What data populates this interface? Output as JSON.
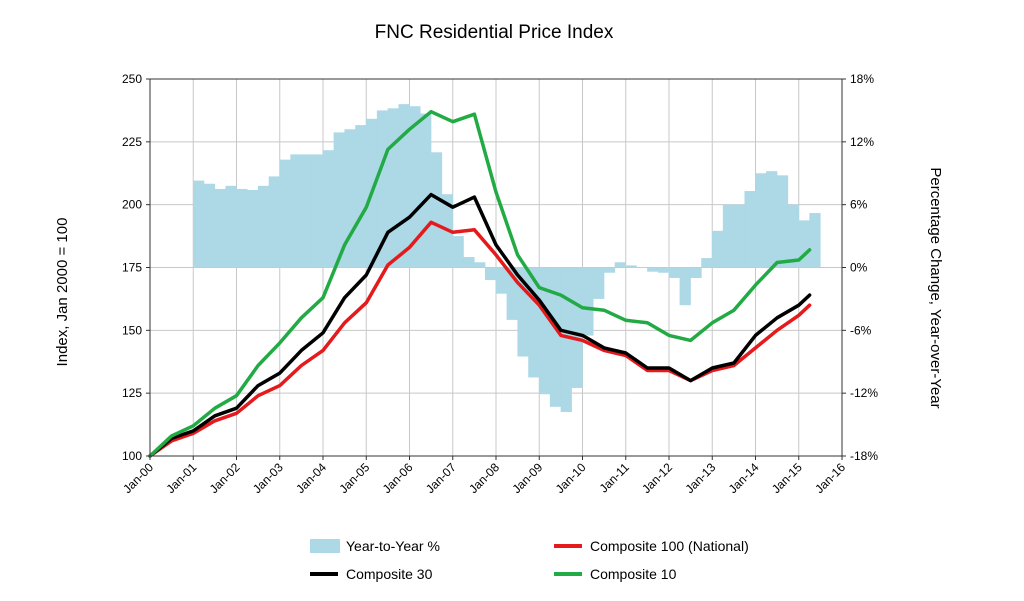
{
  "chart_data": {
    "type": "line",
    "title": "FNC Residential Price Index",
    "ylabel": "Index, Jan 2000 = 100",
    "y2label": "Percentage Change, Year-over-Year",
    "ylim": [
      100,
      250
    ],
    "y2lim": [
      -18,
      18
    ],
    "yticks": [
      "100",
      "125",
      "150",
      "175",
      "200",
      "225",
      "250"
    ],
    "y2ticks": [
      "-18%",
      "-12%",
      "-6%",
      "0%",
      "6%",
      "12%",
      "18%"
    ],
    "xticks": [
      "Jan-00",
      "Jan-01",
      "Jan-02",
      "Jan-03",
      "Jan-04",
      "Jan-05",
      "Jan-06",
      "Jan-07",
      "Jan-08",
      "Jan-09",
      "Jan-10",
      "Jan-11",
      "Jan-12",
      "Jan-13",
      "Jan-14",
      "Jan-15",
      "Jan-16"
    ],
    "grid": true,
    "legend_position": "bottom",
    "legend": [
      "Year-to-Year %",
      "Composite 100 (National)",
      "Composite 30",
      "Composite 10"
    ],
    "series": [
      {
        "name": "Year-to-Year %",
        "axis": "right",
        "style": "bar",
        "color": "#add8e6",
        "x": [
          2001.0,
          2001.25,
          2001.5,
          2001.75,
          2002.0,
          2002.25,
          2002.5,
          2002.75,
          2003.0,
          2003.25,
          2003.5,
          2003.75,
          2004.0,
          2004.25,
          2004.5,
          2004.75,
          2005.0,
          2005.25,
          2005.5,
          2005.75,
          2006.0,
          2006.25,
          2006.5,
          2006.75,
          2007.0,
          2007.25,
          2007.5,
          2007.75,
          2008.0,
          2008.25,
          2008.5,
          2008.75,
          2009.0,
          2009.25,
          2009.5,
          2009.75,
          2010.0,
          2010.25,
          2010.5,
          2010.75,
          2011.0,
          2011.25,
          2011.5,
          2011.75,
          2012.0,
          2012.25,
          2012.5,
          2012.75,
          2013.0,
          2013.25,
          2013.5,
          2013.75,
          2014.0,
          2014.25,
          2014.5,
          2014.75,
          2015.0,
          2015.25
        ],
        "values": [
          8.3,
          8.0,
          7.5,
          7.8,
          7.5,
          7.4,
          7.8,
          8.7,
          10.3,
          10.8,
          10.8,
          10.8,
          11.2,
          12.9,
          13.2,
          13.6,
          14.2,
          15.0,
          15.2,
          15.6,
          15.4,
          14.7,
          11.0,
          7.0,
          3.0,
          1.0,
          0.5,
          -1.2,
          -2.5,
          -5.0,
          -8.5,
          -10.5,
          -12.1,
          -13.3,
          -13.8,
          -11.5,
          -6.5,
          -3.0,
          -0.5,
          0.5,
          0.2,
          0.0,
          -0.4,
          -0.5,
          -1.0,
          -3.6,
          -1.0,
          0.9,
          3.5,
          6.0,
          6.0,
          7.3,
          9.0,
          9.2,
          8.8,
          6.0,
          4.5,
          5.2
        ]
      },
      {
        "name": "Composite 100 (National)",
        "axis": "left",
        "color": "#e41a1c",
        "x": [
          2000.0,
          2000.5,
          2001.0,
          2001.5,
          2002.0,
          2002.5,
          2003.0,
          2003.5,
          2004.0,
          2004.5,
          2005.0,
          2005.5,
          2006.0,
          2006.5,
          2007.0,
          2007.5,
          2008.0,
          2008.5,
          2009.0,
          2009.5,
          2010.0,
          2010.5,
          2011.0,
          2011.5,
          2012.0,
          2012.5,
          2013.0,
          2013.5,
          2014.0,
          2014.5,
          2015.0,
          2015.25
        ],
        "values": [
          100,
          106,
          109,
          114,
          117,
          124,
          128,
          136,
          142,
          153,
          161,
          176,
          183,
          193,
          189,
          190,
          180,
          169,
          160,
          148,
          146,
          142,
          140,
          134,
          134,
          130,
          134,
          136,
          143,
          150,
          156,
          160
        ]
      },
      {
        "name": "Composite 30",
        "axis": "left",
        "color": "#000000",
        "x": [
          2000.0,
          2000.5,
          2001.0,
          2001.5,
          2002.0,
          2002.5,
          2003.0,
          2003.5,
          2004.0,
          2004.5,
          2005.0,
          2005.5,
          2006.0,
          2006.5,
          2007.0,
          2007.5,
          2008.0,
          2008.5,
          2009.0,
          2009.5,
          2010.0,
          2010.5,
          2011.0,
          2011.5,
          2012.0,
          2012.5,
          2013.0,
          2013.5,
          2014.0,
          2014.5,
          2015.0,
          2015.25
        ],
        "values": [
          100,
          107,
          110,
          116,
          119,
          128,
          133,
          142,
          149,
          163,
          172,
          189,
          195,
          204,
          199,
          203,
          184,
          172,
          162,
          150,
          148,
          143,
          141,
          135,
          135,
          130,
          135,
          137,
          148,
          155,
          160,
          164
        ]
      },
      {
        "name": "Composite 10",
        "axis": "left",
        "color": "#22aa44",
        "x": [
          2000.0,
          2000.5,
          2001.0,
          2001.5,
          2002.0,
          2002.5,
          2003.0,
          2003.5,
          2004.0,
          2004.5,
          2005.0,
          2005.5,
          2006.0,
          2006.5,
          2007.0,
          2007.5,
          2008.0,
          2008.5,
          2009.0,
          2009.5,
          2010.0,
          2010.5,
          2011.0,
          2011.5,
          2012.0,
          2012.5,
          2013.0,
          2013.5,
          2014.0,
          2014.5,
          2015.0,
          2015.25
        ],
        "values": [
          100,
          108,
          112,
          119,
          124,
          136,
          145,
          155,
          163,
          184,
          199,
          222,
          230,
          237,
          233,
          236,
          205,
          180,
          167,
          164,
          159,
          158,
          154,
          153,
          148,
          146,
          153,
          158,
          168,
          177,
          178,
          182
        ]
      }
    ]
  }
}
